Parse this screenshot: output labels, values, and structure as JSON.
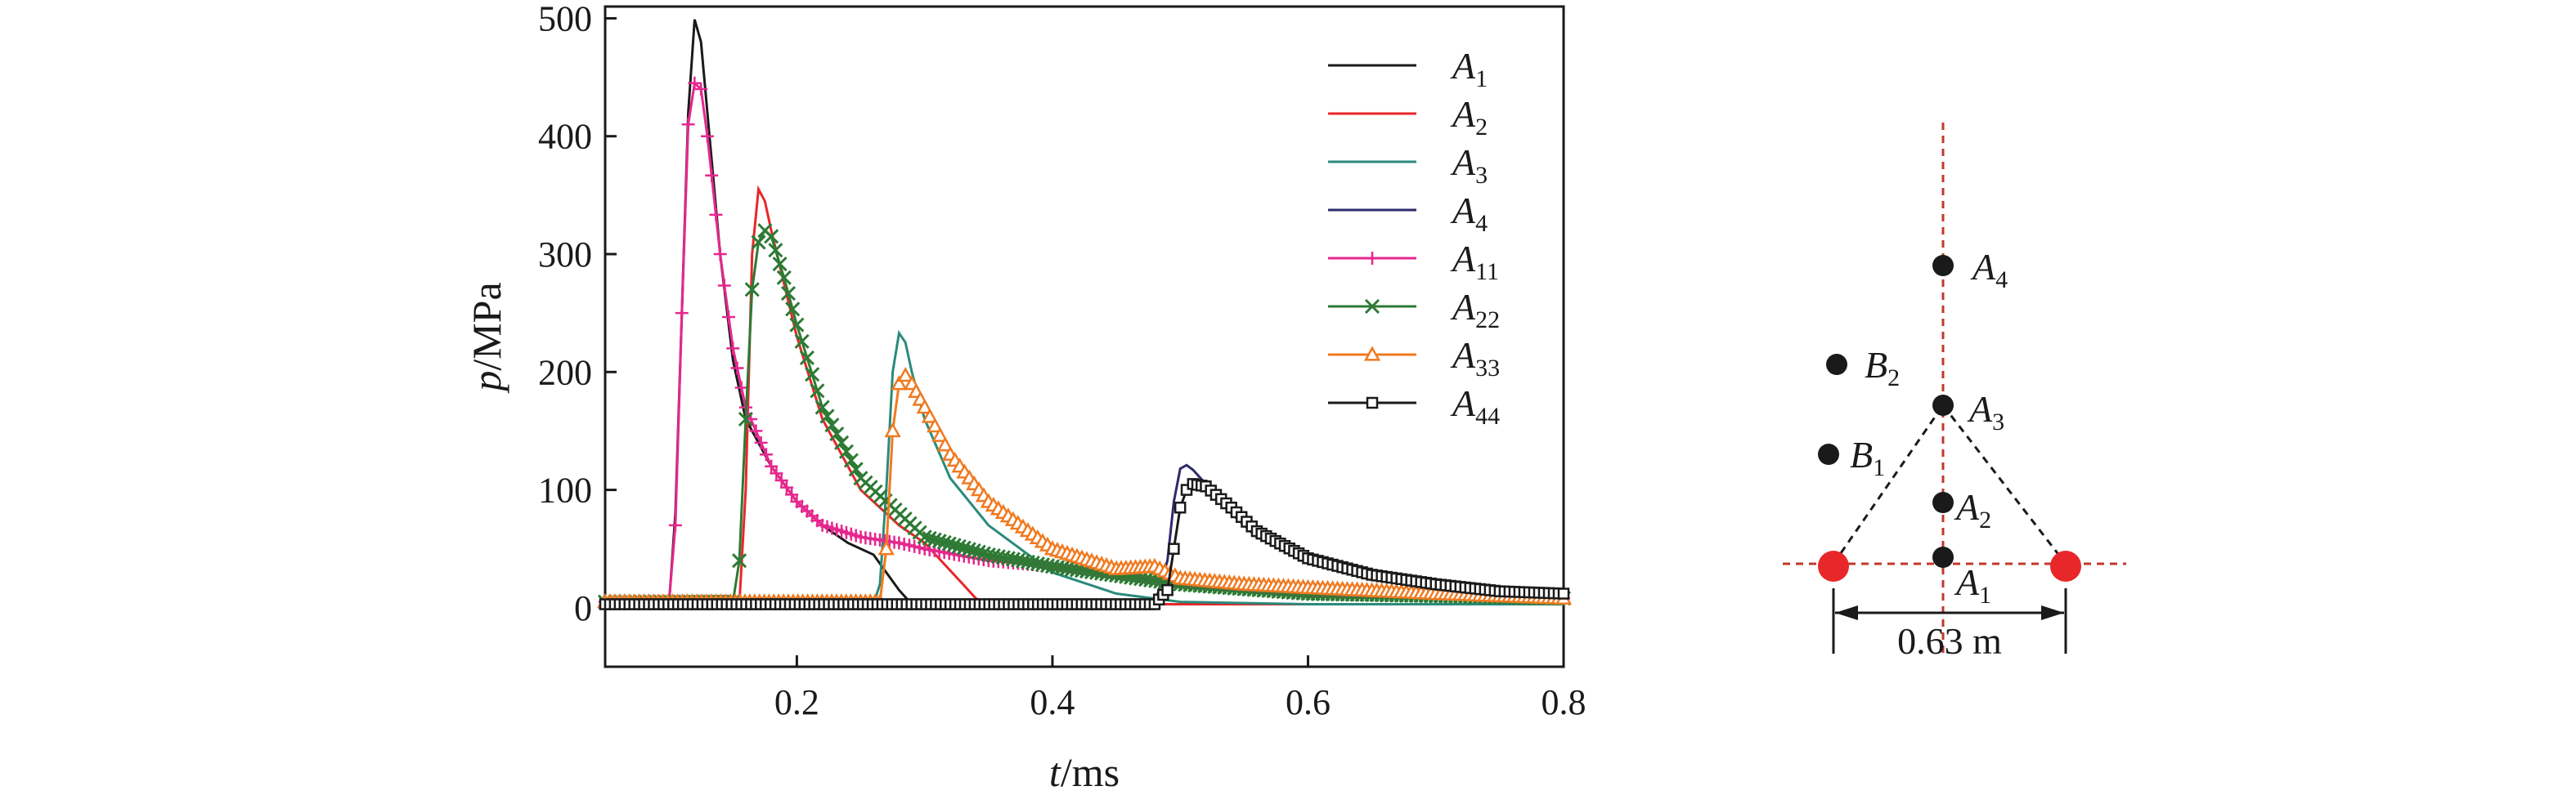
{
  "chart_data": {
    "type": "line",
    "xlabel": "t/ms",
    "xlabel_italic": "t",
    "xlabel_unit": "/ms",
    "ylabel": "p/MPa",
    "ylabel_italic": "p",
    "ylabel_unit": "/MPa",
    "xlim": [
      0.05,
      0.8
    ],
    "ylim": [
      -50,
      510
    ],
    "xticks": [
      0.2,
      0.4,
      0.6,
      0.8
    ],
    "xtick_labels": [
      "0.2",
      "0.4",
      "0.6",
      "0.8"
    ],
    "yticks": [
      0,
      100,
      200,
      300,
      400,
      500
    ],
    "ytick_labels": [
      "0",
      "100",
      "200",
      "300",
      "400",
      "500"
    ],
    "grid": false,
    "legend_position": "top-right",
    "series": [
      {
        "name": "A",
        "sub": "1",
        "color": "#1a1a1a",
        "marker": "none",
        "x": [
          0.05,
          0.1,
          0.105,
          0.11,
          0.115,
          0.12,
          0.125,
          0.13,
          0.14,
          0.15,
          0.16,
          0.18,
          0.2,
          0.22,
          0.24,
          0.26,
          0.27,
          0.28,
          0.29,
          0.3,
          0.6,
          0.7,
          0.8
        ],
        "y": [
          3,
          3,
          80,
          250,
          420,
          499,
          480,
          420,
          300,
          210,
          160,
          120,
          90,
          70,
          55,
          45,
          30,
          15,
          3,
          3,
          3,
          3,
          3
        ]
      },
      {
        "name": "A",
        "sub": "2",
        "color": "#e8272a",
        "marker": "none",
        "x": [
          0.05,
          0.155,
          0.16,
          0.165,
          0.17,
          0.175,
          0.18,
          0.2,
          0.22,
          0.25,
          0.28,
          0.3,
          0.33,
          0.34,
          0.35,
          0.4,
          0.6,
          0.8
        ],
        "y": [
          3,
          3,
          100,
          300,
          355,
          345,
          320,
          230,
          160,
          100,
          70,
          55,
          20,
          8,
          3,
          3,
          3,
          3
        ]
      },
      {
        "name": "A",
        "sub": "3",
        "color": "#2a8a7a",
        "marker": "none",
        "x": [
          0.05,
          0.26,
          0.265,
          0.27,
          0.275,
          0.28,
          0.285,
          0.29,
          0.3,
          0.32,
          0.35,
          0.4,
          0.45,
          0.5,
          0.6,
          0.7,
          0.8
        ],
        "y": [
          3,
          3,
          20,
          100,
          200,
          233,
          225,
          200,
          160,
          110,
          70,
          30,
          12,
          5,
          3,
          3,
          3
        ]
      },
      {
        "name": "A",
        "sub": "4",
        "color": "#2d2a6e",
        "marker": "none",
        "x": [
          0.05,
          0.48,
          0.49,
          0.495,
          0.5,
          0.505,
          0.51,
          0.52,
          0.54,
          0.56,
          0.6,
          0.65,
          0.7,
          0.75,
          0.8
        ],
        "y": [
          3,
          3,
          40,
          90,
          118,
          121,
          117,
          105,
          80,
          60,
          40,
          28,
          22,
          15,
          12
        ]
      },
      {
        "name": "A",
        "sub": "11",
        "color": "#e6278e",
        "marker": "plus",
        "x": [
          0.05,
          0.1,
          0.105,
          0.11,
          0.115,
          0.12,
          0.125,
          0.13,
          0.14,
          0.15,
          0.16,
          0.18,
          0.2,
          0.22,
          0.25,
          0.28,
          0.3,
          0.35,
          0.4,
          0.5,
          0.6,
          0.7,
          0.8
        ],
        "y": [
          5,
          5,
          70,
          250,
          410,
          445,
          440,
          400,
          300,
          220,
          170,
          120,
          90,
          70,
          60,
          55,
          50,
          40,
          35,
          20,
          12,
          10,
          8
        ]
      },
      {
        "name": "A",
        "sub": "22",
        "color": "#2d7a34",
        "marker": "x",
        "x": [
          0.05,
          0.15,
          0.155,
          0.16,
          0.165,
          0.17,
          0.175,
          0.18,
          0.19,
          0.2,
          0.22,
          0.25,
          0.3,
          0.35,
          0.4,
          0.5,
          0.6,
          0.7,
          0.8
        ],
        "y": [
          5,
          5,
          40,
          160,
          270,
          310,
          320,
          315,
          280,
          240,
          170,
          110,
          60,
          45,
          35,
          20,
          12,
          10,
          8
        ]
      },
      {
        "name": "A",
        "sub": "33",
        "color": "#f07a20",
        "marker": "triangle",
        "x": [
          0.05,
          0.265,
          0.27,
          0.275,
          0.28,
          0.285,
          0.29,
          0.3,
          0.32,
          0.35,
          0.4,
          0.45,
          0.48,
          0.5,
          0.55,
          0.6,
          0.7,
          0.8
        ],
        "y": [
          5,
          5,
          50,
          150,
          190,
          197,
          190,
          170,
          130,
          90,
          50,
          33,
          35,
          25,
          20,
          17,
          12,
          8
        ]
      },
      {
        "name": "A",
        "sub": "44",
        "color": "#1a1a1a",
        "marker": "square",
        "x": [
          0.05,
          0.48,
          0.49,
          0.495,
          0.5,
          0.505,
          0.51,
          0.52,
          0.54,
          0.56,
          0.6,
          0.65,
          0.7,
          0.75,
          0.8
        ],
        "y": [
          3,
          3,
          15,
          50,
          85,
          100,
          105,
          103,
          85,
          65,
          42,
          28,
          20,
          14,
          12
        ]
      }
    ]
  },
  "diagram": {
    "points": [
      {
        "name": "A",
        "sub": "1"
      },
      {
        "name": "A",
        "sub": "2"
      },
      {
        "name": "A",
        "sub": "3"
      },
      {
        "name": "A",
        "sub": "4"
      },
      {
        "name": "B",
        "sub": "1"
      },
      {
        "name": "B",
        "sub": "2"
      }
    ],
    "dimension_label": "0.63 m",
    "charge_color": "#e8272a",
    "guide_color": "#c0392b"
  }
}
